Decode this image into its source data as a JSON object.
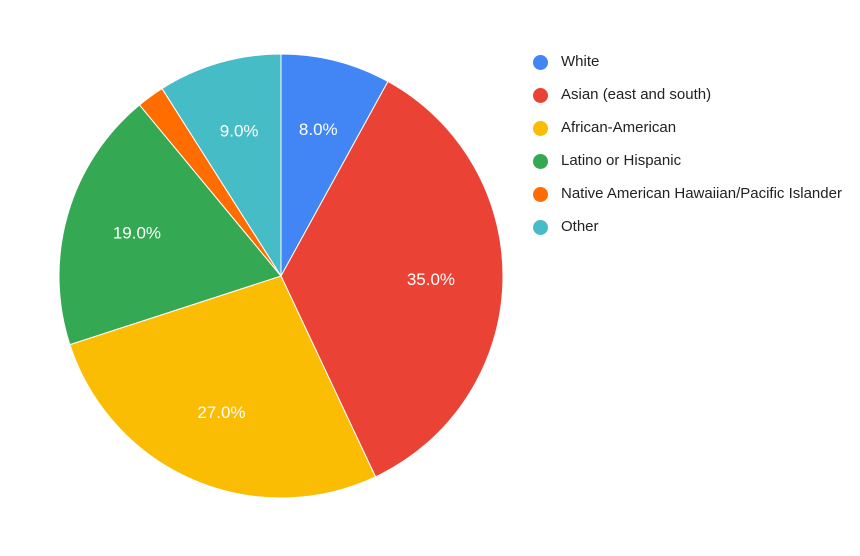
{
  "chart_data": {
    "type": "pie",
    "title": "",
    "categories": [
      "White",
      "Asian (east and south)",
      "African-American",
      "Latino or Hispanic",
      "Native American Hawaiian/Pacific Islander",
      "Other"
    ],
    "values": [
      8.0,
      35.0,
      27.0,
      19.0,
      2.0,
      9.0
    ],
    "labels": [
      "8.0%",
      "35.0%",
      "27.0%",
      "19.0%",
      "",
      "9.0%"
    ],
    "colors": [
      "#4285F4",
      "#EA4335",
      "#FBBC04",
      "#34A853",
      "#FF6D01",
      "#46BDC6"
    ],
    "legend_position": "right"
  }
}
